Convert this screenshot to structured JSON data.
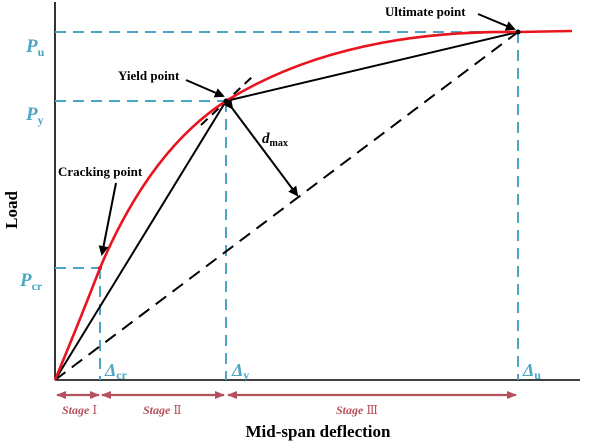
{
  "axes": {
    "y_label": "Load",
    "x_label": "Mid-span deflection"
  },
  "load_levels": {
    "Pu": {
      "main": "P",
      "sub": "u"
    },
    "Py": {
      "main": "P",
      "sub": "y"
    },
    "Pcr": {
      "main": "P",
      "sub": "cr"
    }
  },
  "deflection_levels": {
    "dcr": {
      "main": "Δ",
      "sub": "cr"
    },
    "dy": {
      "main": "Δ",
      "sub": "y"
    },
    "du": {
      "main": "Δ",
      "sub": "u"
    }
  },
  "annotations": {
    "ultimate": "Ultimate point",
    "yield": "Yield point",
    "cracking": "Cracking point",
    "dmax_main": "d",
    "dmax_sub": "max"
  },
  "stages": [
    {
      "label": "Stage",
      "numeral": "Ⅰ"
    },
    {
      "label": "Stage",
      "numeral": "Ⅱ"
    },
    {
      "label": "Stage",
      "numeral": "Ⅲ"
    }
  ],
  "colors": {
    "curve": "#e8141e",
    "guides": "#4aa6c4",
    "stage_arrows": "#b5505d",
    "lines": "#000000"
  }
}
